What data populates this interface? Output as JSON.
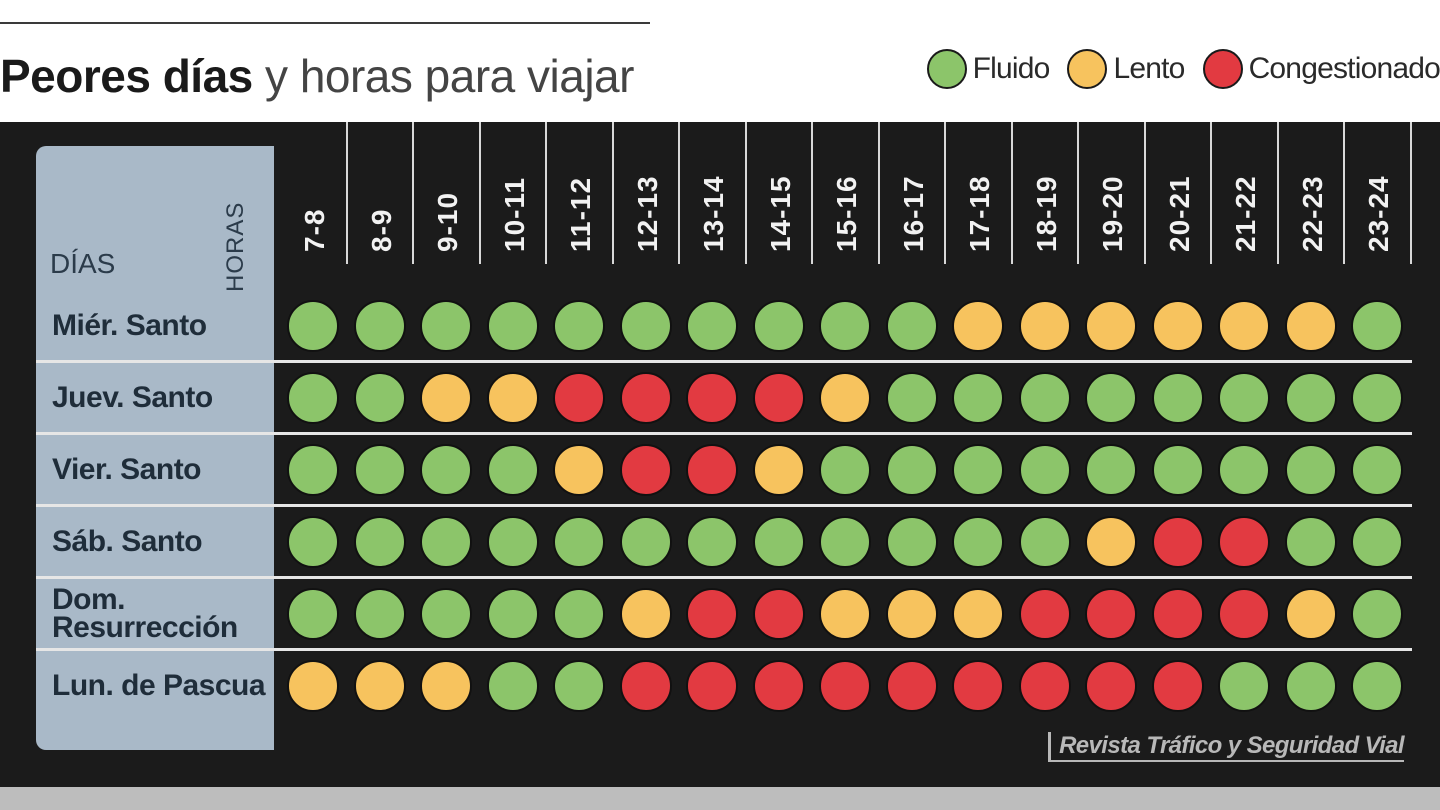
{
  "title": {
    "bold": "Peores días",
    "light": "y horas para viajar"
  },
  "legend": [
    {
      "label": "Fluido",
      "color": "#8cc56a"
    },
    {
      "label": "Lento",
      "color": "#f7c35e"
    },
    {
      "label": "Congestionado",
      "color": "#e23a41"
    }
  ],
  "axis": {
    "hours_label": "HORAS",
    "days_label": "DÍAS"
  },
  "source": "Revista Tráfico y Seguridad Vial",
  "chart_data": {
    "type": "heatmap",
    "x": [
      "7-8",
      "8-9",
      "9-10",
      "10-11",
      "11-12",
      "12-13",
      "13-14",
      "14-15",
      "15-16",
      "16-17",
      "17-18",
      "18-19",
      "19-20",
      "20-21",
      "21-22",
      "22-23",
      "23-24"
    ],
    "y": [
      "Miér. Santo",
      "Juev. Santo",
      "Vier. Santo",
      "Sáb. Santo",
      "Dom. Resurrección",
      "Lun. de Pascua"
    ],
    "levels": [
      "Fluido",
      "Lento",
      "Congestionado"
    ],
    "values": [
      [
        "Fluido",
        "Fluido",
        "Fluido",
        "Fluido",
        "Fluido",
        "Fluido",
        "Fluido",
        "Fluido",
        "Fluido",
        "Fluido",
        "Lento",
        "Lento",
        "Lento",
        "Lento",
        "Lento",
        "Lento",
        "Fluido"
      ],
      [
        "Fluido",
        "Fluido",
        "Lento",
        "Lento",
        "Congestionado",
        "Congestionado",
        "Congestionado",
        "Congestionado",
        "Lento",
        "Fluido",
        "Fluido",
        "Fluido",
        "Fluido",
        "Fluido",
        "Fluido",
        "Fluido",
        "Fluido"
      ],
      [
        "Fluido",
        "Fluido",
        "Fluido",
        "Fluido",
        "Lento",
        "Congestionado",
        "Congestionado",
        "Lento",
        "Fluido",
        "Fluido",
        "Fluido",
        "Fluido",
        "Fluido",
        "Fluido",
        "Fluido",
        "Fluido",
        "Fluido"
      ],
      [
        "Fluido",
        "Fluido",
        "Fluido",
        "Fluido",
        "Fluido",
        "Fluido",
        "Fluido",
        "Fluido",
        "Fluido",
        "Fluido",
        "Fluido",
        "Fluido",
        "Lento",
        "Congestionado",
        "Congestionado",
        "Fluido",
        "Fluido"
      ],
      [
        "Fluido",
        "Fluido",
        "Fluido",
        "Fluido",
        "Fluido",
        "Lento",
        "Congestionado",
        "Congestionado",
        "Lento",
        "Lento",
        "Lento",
        "Congestionado",
        "Congestionado",
        "Congestionado",
        "Congestionado",
        "Lento",
        "Fluido"
      ],
      [
        "Lento",
        "Lento",
        "Lento",
        "Fluido",
        "Fluido",
        "Congestionado",
        "Congestionado",
        "Congestionado",
        "Congestionado",
        "Congestionado",
        "Congestionado",
        "Congestionado",
        "Congestionado",
        "Congestionado",
        "Fluido",
        "Fluido",
        "Fluido"
      ]
    ]
  }
}
